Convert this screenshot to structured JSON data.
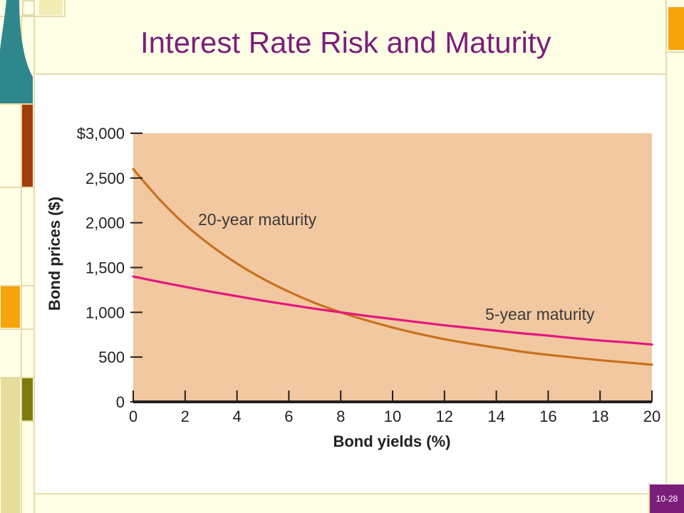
{
  "slide": {
    "title": "Interest Rate Risk and Maturity",
    "slide_number": "10-28"
  },
  "theme": {
    "background": "#FFFFE6",
    "frame_line": "#E4DBAA",
    "title_color": "#7B1E7A",
    "teal": "#2E878C",
    "rust": "#A23C0C",
    "orange": "#F7A30A",
    "olive": "#7E7B0C",
    "tan": "#E6DD9C",
    "pale_yellow": "#F3EDB5",
    "number_box": "#7B1E7A"
  },
  "chart_data": {
    "type": "line",
    "xlabel": "Bond yields (%)",
    "ylabel": "Bond prices ($)",
    "xlim": [
      0,
      20
    ],
    "ylim": [
      0,
      3000
    ],
    "x_ticks": [
      0,
      2,
      4,
      6,
      8,
      10,
      12,
      14,
      16,
      18,
      20
    ],
    "x_tick_labels": [
      "0",
      "2",
      "4",
      "6",
      "8",
      "10",
      "12",
      "14",
      "16",
      "18",
      "20"
    ],
    "y_ticks": [
      0,
      500,
      1000,
      1500,
      2000,
      2500,
      3000
    ],
    "y_tick_labels": [
      "0",
      "500",
      "1,000",
      "1,500",
      "2,000",
      "2,500",
      "$3,000"
    ],
    "grid": false,
    "legend": "none",
    "plot_background": "#F2C8A0",
    "x": [
      0,
      1,
      2,
      3,
      4,
      5,
      6,
      7,
      8,
      9,
      10,
      11,
      12,
      13,
      14,
      15,
      16,
      17,
      18,
      19,
      20
    ],
    "series": [
      {
        "name": "20-year maturity",
        "color": "#C8711F",
        "values": [
          2600,
          2265,
          1980,
          1745,
          1545,
          1375,
          1230,
          1105,
          1000,
          910,
          830,
          760,
          700,
          650,
          605,
          560,
          525,
          495,
          465,
          440,
          415
        ]
      },
      {
        "name": "5-year maturity",
        "color": "#E5177F",
        "values": [
          1400,
          1340,
          1285,
          1230,
          1180,
          1130,
          1085,
          1040,
          1000,
          960,
          925,
          890,
          855,
          825,
          795,
          765,
          740,
          710,
          685,
          665,
          640
        ]
      }
    ]
  }
}
